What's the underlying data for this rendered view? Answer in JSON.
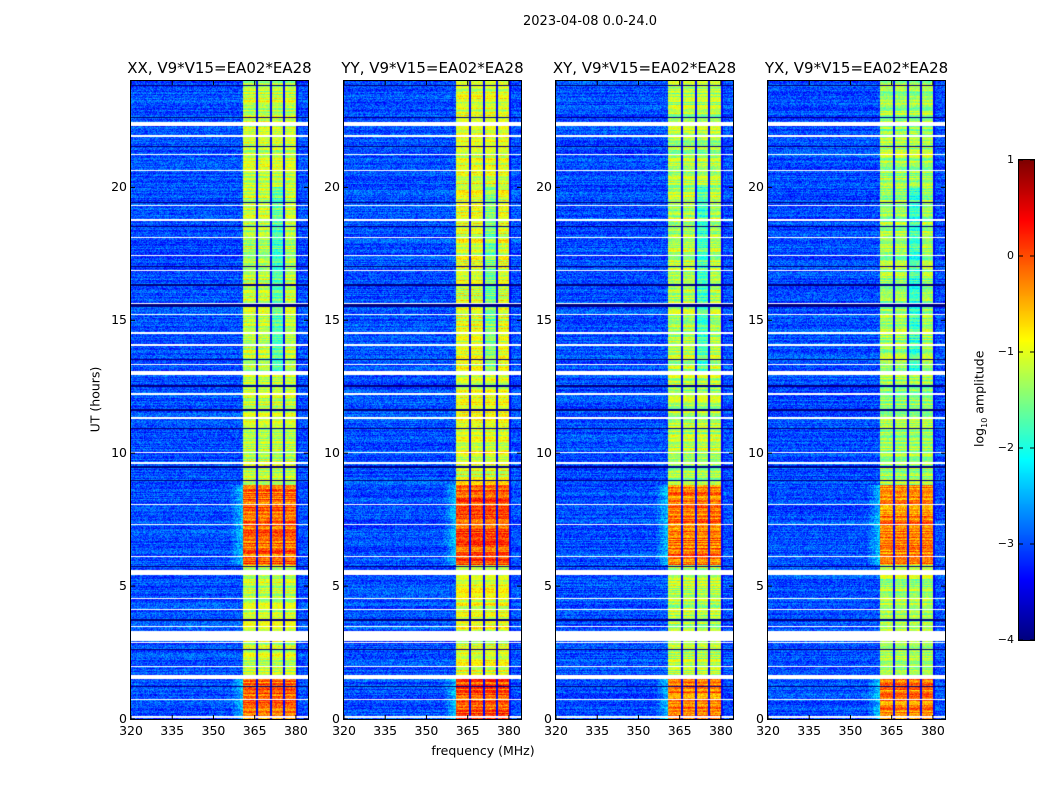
{
  "chart_data": {
    "type": "heatmap",
    "title": "2023-04-08 0.0-24.0",
    "xlabel": "frequency (MHz)",
    "ylabel": "UT (hours)",
    "xlim": [
      320,
      384.4
    ],
    "ylim": [
      0,
      24
    ],
    "xticks": [
      "320",
      "335",
      "350",
      "365",
      "380"
    ],
    "xtick_values": [
      320,
      335,
      350,
      365,
      380
    ],
    "yticks": [
      "0",
      "5",
      "10",
      "15",
      "20"
    ],
    "ytick_values": [
      0,
      5,
      10,
      15,
      20
    ],
    "panels": [
      {
        "title": "XX, V9*V15=EA02*EA28",
        "band_strength": 1.0
      },
      {
        "title": "YY, V9*V15=EA02*EA28",
        "band_strength": 1.15
      },
      {
        "title": "XY, V9*V15=EA02*EA28",
        "band_strength": 0.95
      },
      {
        "title": "YX, V9*V15=EA02*EA28",
        "band_strength": 0.9
      }
    ],
    "signal_subbands_mhz": [
      [
        360.7,
        365.5
      ],
      [
        366.2,
        370.5
      ],
      [
        371.3,
        375.3
      ],
      [
        376.0,
        380.0
      ]
    ],
    "background_level": -3.0,
    "band_level": -1.2,
    "bright_intervals_hours": [
      [
        0.0,
        1.5
      ],
      [
        5.8,
        8.8
      ]
    ],
    "flagged_intervals_hours": [
      [
        0.05,
        0.1
      ],
      [
        0.7,
        0.75
      ],
      [
        1.5,
        1.65
      ],
      [
        1.95,
        2.0
      ],
      [
        2.85,
        2.9
      ],
      [
        2.95,
        3.3
      ],
      [
        3.45,
        3.5
      ],
      [
        4.1,
        4.15
      ],
      [
        4.5,
        4.55
      ],
      [
        5.4,
        5.6
      ],
      [
        6.1,
        6.15
      ],
      [
        7.3,
        7.35
      ],
      [
        8.05,
        8.1
      ],
      [
        9.6,
        9.65
      ],
      [
        10.0,
        10.05
      ],
      [
        11.3,
        11.35
      ],
      [
        12.2,
        12.25
      ],
      [
        12.95,
        13.1
      ],
      [
        13.3,
        13.35
      ],
      [
        14.05,
        14.1
      ],
      [
        14.5,
        14.55
      ],
      [
        15.2,
        15.25
      ],
      [
        15.6,
        15.65
      ],
      [
        16.85,
        16.9
      ],
      [
        17.4,
        17.45
      ],
      [
        18.1,
        18.15
      ],
      [
        18.75,
        18.8
      ],
      [
        19.3,
        19.35
      ],
      [
        20.6,
        20.65
      ],
      [
        21.2,
        21.25
      ],
      [
        21.9,
        21.95
      ],
      [
        22.3,
        22.45
      ]
    ],
    "dark_lines_hours": [
      [
        1.2,
        1.25
      ],
      [
        2.6,
        2.63
      ],
      [
        3.7,
        3.75
      ],
      [
        5.7,
        5.75
      ],
      [
        8.95,
        9.0
      ],
      [
        9.45,
        9.5
      ],
      [
        10.9,
        10.95
      ],
      [
        11.6,
        11.65
      ],
      [
        12.5,
        12.55
      ],
      [
        13.5,
        13.55
      ],
      [
        15.5,
        15.6
      ],
      [
        16.3,
        16.35
      ],
      [
        17.0,
        17.05
      ],
      [
        18.5,
        18.55
      ],
      [
        19.4,
        19.45
      ],
      [
        21.5,
        21.55
      ],
      [
        22.6,
        22.65
      ],
      [
        23.8,
        23.85
      ]
    ],
    "colorbar": {
      "label_main": "log",
      "label_sub": "10",
      "label_rest": " amplitude",
      "ticks": [
        "1",
        "0",
        "−1",
        "−2",
        "−3",
        "−4"
      ],
      "tick_values": [
        1,
        0,
        -1,
        -2,
        -3,
        -4
      ],
      "range": [
        -4,
        1
      ],
      "colormap": "jet"
    }
  }
}
